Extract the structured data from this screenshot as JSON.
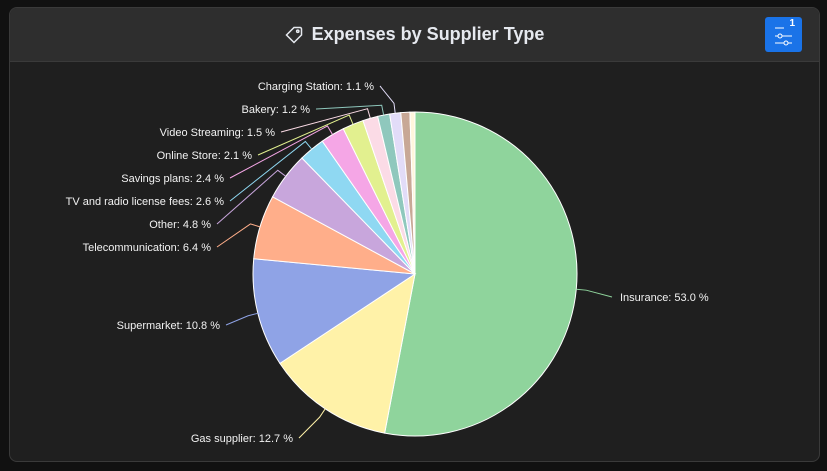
{
  "header": {
    "title": "Expenses by Supplier Type",
    "title_icon": "tag-icon",
    "filter_button": {
      "icon": "sliders-icon",
      "badge_count": "1",
      "color": "#1a73e8"
    }
  },
  "chart_data": {
    "type": "pie",
    "title": "Expenses by Supplier Type",
    "unit": "%",
    "slices": [
      {
        "name": "Insurance",
        "value": 53.0,
        "label": "Insurance: 53.0 %",
        "color": "#8fd49c"
      },
      {
        "name": "Gas supplier",
        "value": 12.7,
        "label": "Gas supplier: 12.7 %",
        "color": "#fff2a8"
      },
      {
        "name": "Supermarket",
        "value": 10.8,
        "label": "Supermarket: 10.8 %",
        "color": "#8fa3e6"
      },
      {
        "name": "Telecommunication",
        "value": 6.4,
        "label": "Telecommunication: 6.4 %",
        "color": "#ffae8a"
      },
      {
        "name": "Other",
        "value": 4.8,
        "label": "Other: 4.8 %",
        "color": "#c8a6dc"
      },
      {
        "name": "TV and radio license fees",
        "value": 2.6,
        "label": "TV and radio license fees: 2.6 %",
        "color": "#8fd8f2"
      },
      {
        "name": "Savings plans",
        "value": 2.4,
        "label": "Savings plans: 2.4 %",
        "color": "#f5a6e6"
      },
      {
        "name": "Online Store",
        "value": 2.1,
        "label": "Online Store: 2.1 %",
        "color": "#e2f08f"
      },
      {
        "name": "Video Streaming",
        "value": 1.5,
        "label": "Video Streaming: 1.5 %",
        "color": "#fbdbe6"
      },
      {
        "name": "Bakery",
        "value": 1.2,
        "label": "Bakery: 1.2 %",
        "color": "#8fc8bd"
      },
      {
        "name": "Charging Station",
        "value": 1.1,
        "label": "Charging Station: 1.1 %",
        "color": "#e2dcf8"
      },
      {
        "name": "",
        "value": 0.9,
        "label": "",
        "color": "#c8a896"
      },
      {
        "name": "",
        "value": 0.5,
        "label": "",
        "color": "#fff6dc"
      }
    ],
    "legend": "none (inline labels)"
  }
}
